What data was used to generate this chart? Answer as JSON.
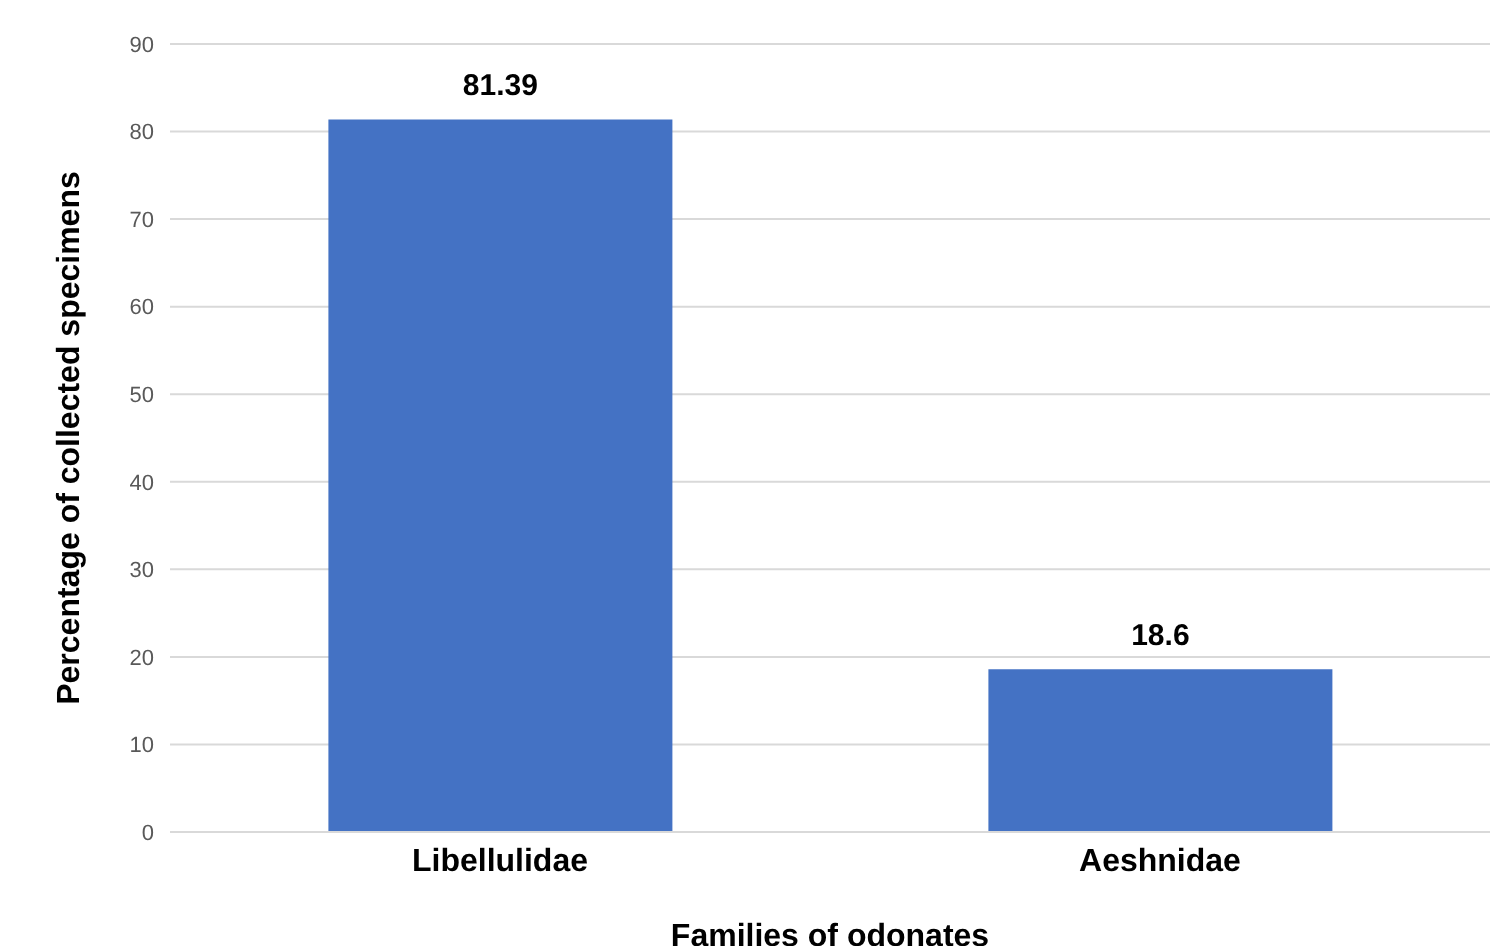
{
  "chart_data": {
    "type": "bar",
    "xlabel": "Families of odonates",
    "ylabel": "Percentage of collected specimens",
    "categories": [
      "Libellulidae",
      "Aeshnidae"
    ],
    "values": [
      81.39,
      18.6
    ],
    "color": "#4472c4",
    "ylim": [
      0,
      90
    ],
    "yticks": [
      0,
      10,
      20,
      30,
      40,
      50,
      60,
      70,
      80,
      90
    ],
    "grid": "y",
    "data_labels": true
  }
}
